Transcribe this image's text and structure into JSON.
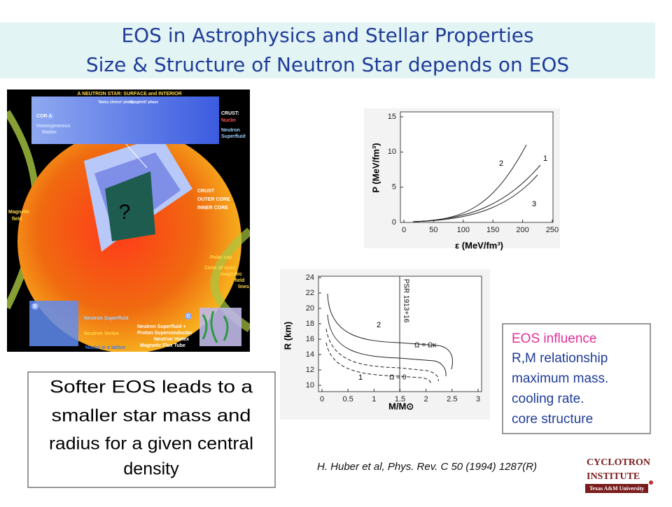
{
  "header": {
    "line1": "EOS in Astrophysics and Stellar Properties",
    "line2": "Size & Structure of Neutron Star depends on EOS"
  },
  "illustration": {
    "title": "A NEUTRON STAR: SURFACE and INTERIOR",
    "core_heading": "CORE:",
    "core_text": [
      "Homogeneous",
      "Matter"
    ],
    "swiss": "'Swiss cheese' phase",
    "spaghetti": "'Spaghetti' phase",
    "crust_heading": "CRUST:",
    "nuclei": "Nuclei",
    "crust_text": [
      "Neutron",
      "Superfluid"
    ],
    "layers": [
      "CRUST",
      "OUTER CORE",
      "INNER CORE"
    ],
    "question": "?",
    "magnetic": [
      "Magnetic",
      "field"
    ],
    "polar_cap": "Polar cap",
    "cone": [
      "Cone of open",
      "magnetic",
      "field",
      "lines"
    ],
    "badges": [
      "A",
      "B",
      "C"
    ],
    "cube_b": [
      "Neutron Superfluid",
      "Neutron Vortex",
      "Nuclei in a lattice"
    ],
    "cube_c": [
      "Neutron Superfluid +",
      "Proton Superconductor",
      "Neutron Vortex",
      "Magnetic Flux Tube"
    ]
  },
  "plot_pressure": {
    "y_label": "P (MeV/fm³)",
    "x_label": "ε (MeV/fm³)",
    "xticks": [
      0,
      50,
      100,
      150,
      200,
      250
    ],
    "yticks": [
      0,
      5,
      10,
      15
    ],
    "curve_labels": [
      "1",
      "2",
      "3"
    ]
  },
  "plot_radius": {
    "y_label": "R (km)",
    "x_label": "M/M⊙",
    "xticks": [
      0,
      0.5,
      1,
      1.5,
      2,
      2.5,
      3
    ],
    "yticks": [
      10,
      12,
      14,
      16,
      18,
      20,
      22,
      24
    ],
    "psr": "PSR 1913+16",
    "omega_k": "Ω = Ωκ",
    "omega_0": "Ω = 0",
    "curve_labels": [
      "2",
      "1"
    ]
  },
  "influence_box": [
    "EOS influence",
    "R,M relationship",
    "maximum mass.",
    "cooling rate.",
    "core structure"
  ],
  "softer_box": [
    "Softer EOS leads to a",
    "smaller star mass and",
    "radius for a given central",
    "density"
  ],
  "citation": "H. Huber et al, Phys. Rev. C 50 (1994) 1287(R)",
  "logo": {
    "line1": "CYCLOTRON",
    "line2": "INSTITUTE",
    "line3": "Texas A&M University"
  }
}
